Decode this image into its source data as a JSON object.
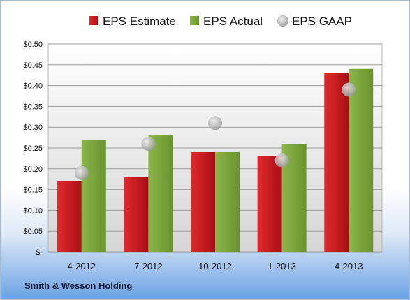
{
  "chart_data": {
    "type": "bar",
    "categories": [
      "4-2012",
      "7-2012",
      "10-2012",
      "1-2013",
      "4-2013"
    ],
    "series": [
      {
        "name": "EPS Estimate",
        "kind": "bar",
        "color": "#c0141a",
        "values": [
          0.17,
          0.18,
          0.24,
          0.23,
          0.43
        ]
      },
      {
        "name": "EPS Actual",
        "kind": "bar",
        "color": "#7aa33a",
        "values": [
          0.27,
          0.28,
          0.24,
          0.26,
          0.44
        ]
      },
      {
        "name": "EPS GAAP",
        "kind": "scatter",
        "color": "#b4b4b4",
        "values": [
          0.19,
          0.26,
          0.31,
          0.22,
          0.39
        ]
      }
    ],
    "ylim": [
      0,
      0.5
    ],
    "yticks": [
      0,
      0.05,
      0.1,
      0.15,
      0.2,
      0.25,
      0.3,
      0.35,
      0.4,
      0.45,
      0.5
    ],
    "ytick_labels": [
      "$-",
      "$0.05",
      "$0.10",
      "$0.15",
      "$0.20",
      "$0.25",
      "$0.30",
      "$0.35",
      "$0.40",
      "$0.45",
      "$0.50"
    ],
    "legend_position": "top",
    "grid": true
  },
  "footer": {
    "company": "Smith & Wesson Holding"
  }
}
